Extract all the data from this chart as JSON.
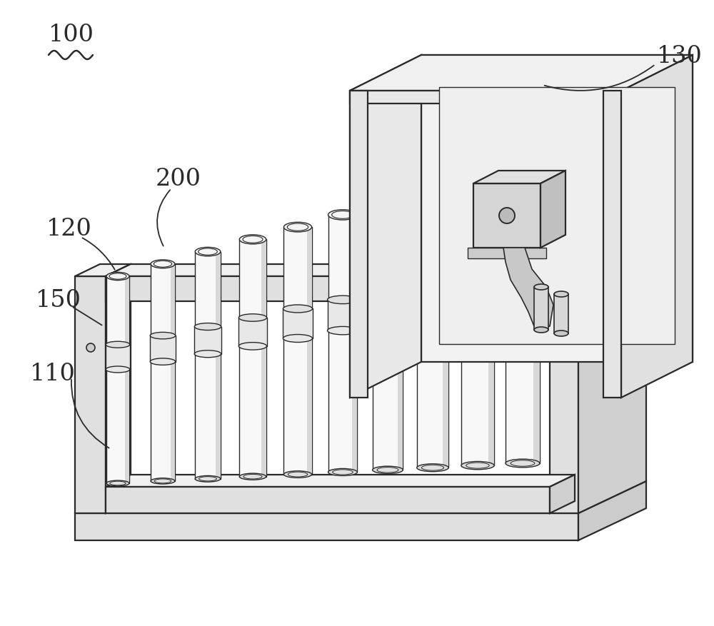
{
  "background_color": "#ffffff",
  "line_color": "#2a2a2a",
  "label_100": "100",
  "label_130": "130",
  "label_200": "200",
  "label_120": "120",
  "label_150": "150",
  "label_110": "110",
  "label_fontsize": 24,
  "fig_width": 10.0,
  "fig_height": 8.78
}
